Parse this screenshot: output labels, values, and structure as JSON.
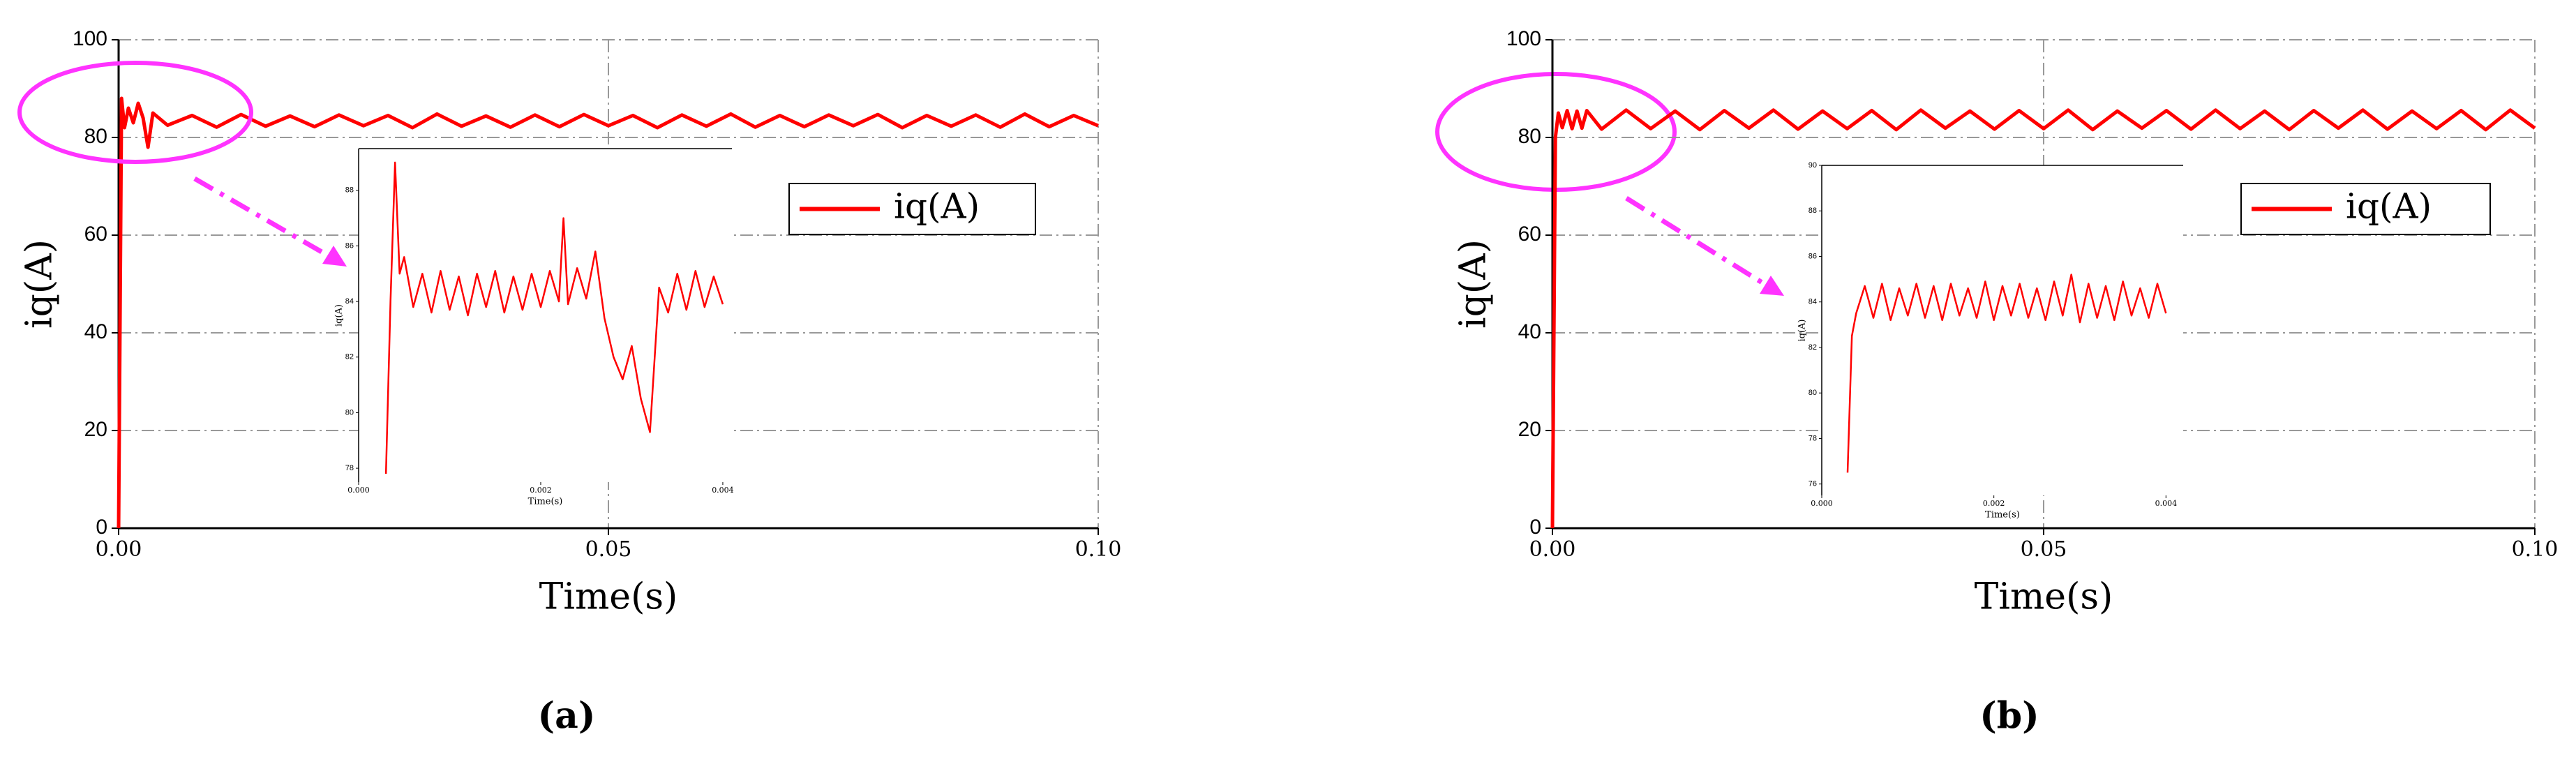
{
  "chart_data": [
    {
      "type": "line",
      "caption": "(a)",
      "xlabel": "Time(s)",
      "ylabel": "iq(A)",
      "x": [
        0,
        0.0003,
        0.0006,
        0.001,
        0.0015,
        0.002,
        0.0025,
        0.003,
        0.0035,
        0.005,
        0.0075,
        0.01,
        0.0125,
        0.015,
        0.0175,
        0.02,
        0.0225,
        0.025,
        0.0275,
        0.03,
        0.0325,
        0.035,
        0.0375,
        0.04,
        0.0425,
        0.045,
        0.0475,
        0.05,
        0.0525,
        0.055,
        0.0575,
        0.06,
        0.0625,
        0.065,
        0.0675,
        0.07,
        0.0725,
        0.075,
        0.0775,
        0.08,
        0.0825,
        0.085,
        0.0875,
        0.09,
        0.0925,
        0.095,
        0.0975,
        0.1
      ],
      "series": [
        {
          "name": "iq(A)",
          "color": "#ff0000",
          "values": [
            0,
            88,
            82,
            86,
            83,
            87,
            84,
            78,
            85,
            82.5,
            84.5,
            82.1,
            84.7,
            82.3,
            84.4,
            82.2,
            84.6,
            82.4,
            84.5,
            82,
            84.8,
            82.3,
            84.4,
            82.1,
            84.6,
            82.2,
            84.7,
            82.4,
            84.5,
            82,
            84.6,
            82.3,
            84.8,
            82.1,
            84.5,
            82.2,
            84.6,
            82.4,
            84.7,
            82,
            84.5,
            82.3,
            84.6,
            82.1,
            84.8,
            82.2,
            84.5,
            82.4
          ]
        }
      ],
      "xlim": [
        0,
        0.1
      ],
      "xticks": [
        {
          "value": 0,
          "label": "0.00"
        },
        {
          "value": 0.05,
          "label": "0.05"
        },
        {
          "value": 0.1,
          "label": "0.10"
        }
      ],
      "ylim": [
        0,
        100
      ],
      "yticks": [
        0,
        20,
        40,
        60,
        80,
        100
      ],
      "grid": true,
      "legend": "upper right"
    },
    {
      "type": "line",
      "xlabel": "Time(s)",
      "ylabel": "iq(A)",
      "x": [
        0.0003,
        0.00035,
        0.0004,
        0.00045,
        0.0005,
        0.0006,
        0.0007,
        0.0008,
        0.0009,
        0.001,
        0.0011,
        0.0012,
        0.0013,
        0.0014,
        0.0015,
        0.0016,
        0.0017,
        0.0018,
        0.0019,
        0.002,
        0.0021,
        0.0022,
        0.00225,
        0.0023,
        0.0024,
        0.0025,
        0.0026,
        0.0027,
        0.0028,
        0.0029,
        0.003,
        0.0031,
        0.0032,
        0.0033,
        0.0034,
        0.0035,
        0.0036,
        0.0037,
        0.0038,
        0.0039,
        0.004
      ],
      "values": [
        77.8,
        84,
        89,
        85,
        85.6,
        83.8,
        85,
        83.6,
        85.1,
        83.7,
        84.9,
        83.5,
        85,
        83.8,
        85.1,
        83.6,
        84.9,
        83.7,
        85,
        83.8,
        85.1,
        84,
        87,
        83.9,
        85.2,
        84.1,
        85.8,
        83.4,
        82,
        81.2,
        82.4,
        80.5,
        79.3,
        84.5,
        83.6,
        85,
        83.7,
        85.1,
        83.8,
        84.9,
        83.9
      ],
      "color": "#ff0000",
      "xlim": [
        0,
        0.0041
      ],
      "xticks": [
        {
          "value": 0,
          "label": "0.000"
        },
        {
          "value": 0.002,
          "label": "0.002"
        },
        {
          "value": 0.004,
          "label": "0.004"
        }
      ],
      "ylim": [
        77.5,
        89.5
      ],
      "yticks": [
        78,
        80,
        82,
        84,
        86,
        88
      ],
      "grid": false
    },
    {
      "type": "line",
      "caption": "(b)",
      "xlabel": "Time(s)",
      "ylabel": "iq(A)",
      "x": [
        0,
        0.0003,
        0.0006,
        0.001,
        0.0015,
        0.002,
        0.0025,
        0.003,
        0.0035,
        0.005,
        0.0075,
        0.01,
        0.0125,
        0.015,
        0.0175,
        0.02,
        0.0225,
        0.025,
        0.0275,
        0.03,
        0.0325,
        0.035,
        0.0375,
        0.04,
        0.0425,
        0.045,
        0.0475,
        0.05,
        0.0525,
        0.055,
        0.0575,
        0.06,
        0.0625,
        0.065,
        0.0675,
        0.07,
        0.0725,
        0.075,
        0.0775,
        0.08,
        0.0825,
        0.085,
        0.0875,
        0.09,
        0.0925,
        0.095,
        0.0975,
        0.1
      ],
      "series": [
        {
          "name": "iq(A)",
          "color": "#ff0000",
          "values": [
            0,
            80,
            85,
            82,
            85.5,
            81.8,
            85.4,
            81.9,
            85.5,
            81.7,
            85.6,
            81.8,
            85.4,
            81.6,
            85.5,
            81.9,
            85.6,
            81.7,
            85.4,
            81.8,
            85.5,
            81.6,
            85.6,
            81.9,
            85.4,
            81.7,
            85.5,
            81.8,
            85.6,
            81.6,
            85.4,
            81.9,
            85.5,
            81.7,
            85.6,
            81.8,
            85.4,
            81.6,
            85.5,
            81.9,
            85.6,
            81.7,
            85.4,
            81.8,
            85.5,
            81.6,
            85.6,
            81.9
          ]
        }
      ],
      "xlim": [
        0,
        0.1
      ],
      "xticks": [
        {
          "value": 0,
          "label": "0.00"
        },
        {
          "value": 0.05,
          "label": "0.05"
        },
        {
          "value": 0.1,
          "label": "0.10"
        }
      ],
      "ylim": [
        0,
        100
      ],
      "yticks": [
        0,
        20,
        40,
        60,
        80,
        100
      ],
      "grid": true,
      "legend": "upper right"
    },
    {
      "type": "line",
      "xlabel": "Time(s)",
      "ylabel": "iq(A)",
      "x": [
        0.0003,
        0.00035,
        0.0004,
        0.0005,
        0.0006,
        0.0007,
        0.0008,
        0.0009,
        0.001,
        0.0011,
        0.0012,
        0.0013,
        0.0014,
        0.0015,
        0.0016,
        0.0017,
        0.0018,
        0.0019,
        0.002,
        0.0021,
        0.0022,
        0.0023,
        0.0024,
        0.0025,
        0.0026,
        0.0027,
        0.0028,
        0.0029,
        0.003,
        0.0031,
        0.0032,
        0.0033,
        0.0034,
        0.0035,
        0.0036,
        0.0037,
        0.0038,
        0.0039,
        0.004
      ],
      "values": [
        76.5,
        82.5,
        83.5,
        84.7,
        83.3,
        84.8,
        83.2,
        84.6,
        83.4,
        84.8,
        83.3,
        84.7,
        83.2,
        84.8,
        83.4,
        84.6,
        83.3,
        84.9,
        83.2,
        84.7,
        83.4,
        84.8,
        83.3,
        84.6,
        83.2,
        84.9,
        83.4,
        85.2,
        83.1,
        84.8,
        83.3,
        84.7,
        83.2,
        84.9,
        83.4,
        84.6,
        83.3,
        84.8,
        83.5
      ],
      "color": "#ff0000",
      "xlim": [
        0,
        0.0042
      ],
      "xticks": [
        {
          "value": 0,
          "label": "0.000"
        },
        {
          "value": 0.002,
          "label": "0.002"
        },
        {
          "value": 0.004,
          "label": "0.004"
        }
      ],
      "ylim": [
        75.5,
        90
      ],
      "yticks": [
        76,
        78,
        80,
        82,
        84,
        86,
        88,
        90
      ],
      "grid": false
    }
  ]
}
